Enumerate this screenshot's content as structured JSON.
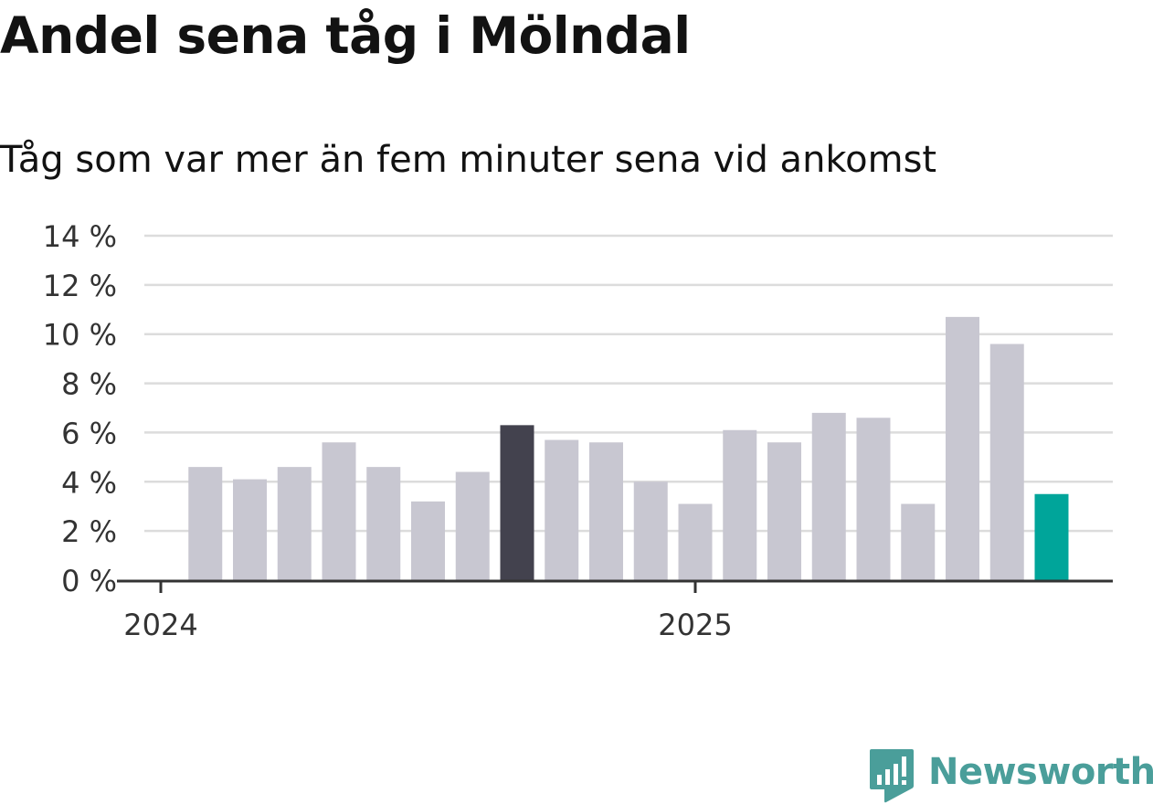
{
  "title": "Andel sena tåg i Mölndal",
  "subtitle": "Tåg som var mer än fem minuter sena vid ankomst",
  "brand": {
    "name": "Newsworthy",
    "color": "#4a9e9a"
  },
  "colors": {
    "bar": "#c8c7d1",
    "highlight_dark": "#43424e",
    "highlight_latest": "#00a59a",
    "grid": "#dcdcdc",
    "axis": "#333333",
    "tick_text": "#333333"
  },
  "chart_data": {
    "type": "bar",
    "title": "Andel sena tåg i Mölndal",
    "subtitle": "Tåg som var mer än fem minuter sena vid ankomst",
    "xlabel": "",
    "ylabel": "",
    "ylim": [
      0,
      14
    ],
    "y_ticks": [
      0,
      2,
      4,
      6,
      8,
      10,
      12,
      14
    ],
    "y_tick_labels": [
      "0 %",
      "2 %",
      "4 %",
      "6 %",
      "8 %",
      "10 %",
      "12 %",
      "14 %"
    ],
    "x_tick_labels": [
      {
        "label": "2024",
        "date": "2024-01"
      },
      {
        "label": "2025",
        "date": "2025-01"
      }
    ],
    "categories": [
      "2024-02",
      "2024-03",
      "2024-04",
      "2024-05",
      "2024-06",
      "2024-07",
      "2024-08",
      "2024-09",
      "2024-10",
      "2024-11",
      "2024-12",
      "2025-01",
      "2025-02",
      "2025-03",
      "2025-04",
      "2025-05",
      "2025-06",
      "2025-07",
      "2025-08",
      "2025-09"
    ],
    "values": [
      4.6,
      4.1,
      4.6,
      5.6,
      4.6,
      3.2,
      4.4,
      6.3,
      5.7,
      5.6,
      4.0,
      3.1,
      6.1,
      5.6,
      6.8,
      6.6,
      3.1,
      10.7,
      9.6,
      3.5
    ],
    "highlight": {
      "2024-09": "dark",
      "2025-09": "latest"
    },
    "grid": true,
    "legend": "none"
  }
}
